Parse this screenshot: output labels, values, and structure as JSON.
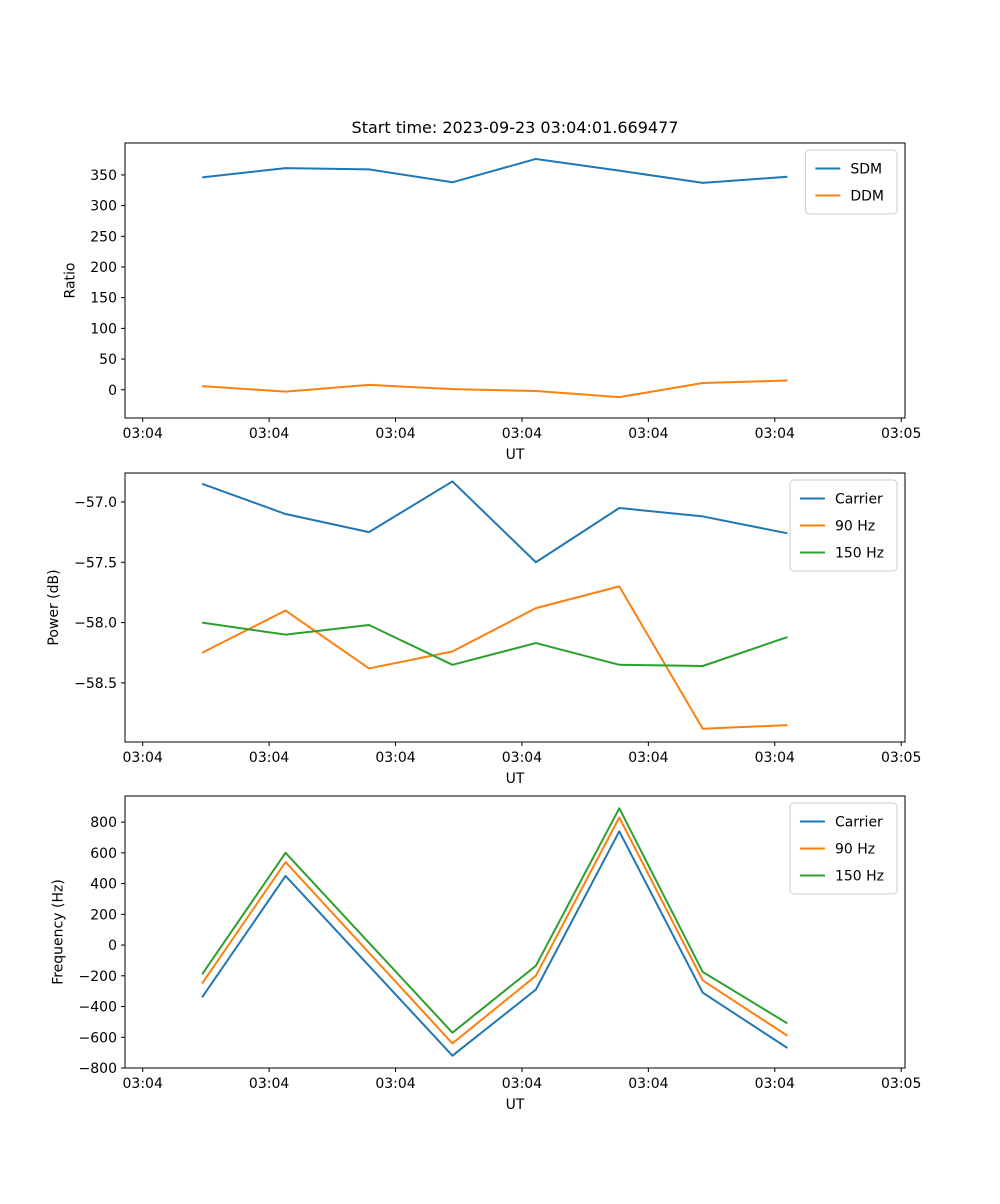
{
  "figure": {
    "title": "Start time: 2023-09-23 03:04:01.669477",
    "background": "#ffffff",
    "spine_color": "#000000",
    "legend_border_color": "#cccccc"
  },
  "chart_data": [
    {
      "type": "line",
      "title": "Start time: 2023-09-23 03:04:01.669477",
      "xlabel": "UT",
      "ylabel": "Ratio",
      "grid": false,
      "legend_position": "upper right",
      "xlim_seconds": [
        -1.4,
        60.3
      ],
      "xtick_seconds": [
        0,
        10,
        20,
        30,
        40,
        50,
        60
      ],
      "xtick_labels": [
        "03:04",
        "03:04",
        "03:04",
        "03:04",
        "03:04",
        "03:04",
        "03:05"
      ],
      "ylim": [
        -46,
        402
      ],
      "yticks": [
        0,
        50,
        100,
        150,
        200,
        250,
        300,
        350
      ],
      "ytick_labels": [
        "0",
        "50",
        "100",
        "150",
        "200",
        "250",
        "300",
        "350"
      ],
      "x_seconds": [
        4.7,
        11.3,
        17.9,
        24.5,
        31.1,
        37.7,
        44.3,
        51.0
      ],
      "series": [
        {
          "name": "SDM",
          "color": "#1f77b4",
          "values": [
            346,
            361,
            359,
            338,
            376,
            357,
            337,
            347
          ]
        },
        {
          "name": "DDM",
          "color": "#ff7f0e",
          "values": [
            6,
            -3,
            8,
            1,
            -2,
            -12,
            11,
            15
          ]
        }
      ]
    },
    {
      "type": "line",
      "title": "",
      "xlabel": "UT",
      "ylabel": "Power (dB)",
      "grid": false,
      "legend_position": "upper right",
      "xlim_seconds": [
        -1.4,
        60.3
      ],
      "xtick_seconds": [
        0,
        10,
        20,
        30,
        40,
        50,
        60
      ],
      "xtick_labels": [
        "03:04",
        "03:04",
        "03:04",
        "03:04",
        "03:04",
        "03:04",
        "03:05"
      ],
      "ylim": [
        -58.99,
        -56.76
      ],
      "yticks": [
        -57.0,
        -57.5,
        -58.0,
        -58.5
      ],
      "ytick_labels": [
        "−57.0",
        "−57.5",
        "−58.0",
        "−58.5"
      ],
      "x_seconds": [
        4.7,
        11.3,
        17.9,
        24.5,
        31.1,
        37.7,
        44.3,
        51.0
      ],
      "series": [
        {
          "name": "Carrier",
          "color": "#1f77b4",
          "values": [
            -56.85,
            -57.1,
            -57.25,
            -56.83,
            -57.5,
            -57.05,
            -57.12,
            -57.26
          ]
        },
        {
          "name": "90 Hz",
          "color": "#ff7f0e",
          "values": [
            -58.25,
            -57.9,
            -58.38,
            -58.24,
            -57.88,
            -57.7,
            -58.88,
            -58.85
          ]
        },
        {
          "name": "150 Hz",
          "color": "#2ca02c",
          "values": [
            -58.0,
            -58.1,
            -58.02,
            -58.35,
            -58.17,
            -58.35,
            -58.36,
            -58.12
          ]
        }
      ]
    },
    {
      "type": "line",
      "title": "",
      "xlabel": "UT",
      "ylabel": "Frequency (Hz)",
      "grid": false,
      "legend_position": "upper right",
      "xlim_seconds": [
        -1.4,
        60.3
      ],
      "xtick_seconds": [
        0,
        10,
        20,
        30,
        40,
        50,
        60
      ],
      "xtick_labels": [
        "03:04",
        "03:04",
        "03:04",
        "03:04",
        "03:04",
        "03:04",
        "03:05"
      ],
      "ylim": [
        -800,
        970
      ],
      "yticks": [
        -800,
        -600,
        -400,
        -200,
        0,
        200,
        400,
        600,
        800
      ],
      "ytick_labels": [
        "−800",
        "−600",
        "−400",
        "−200",
        "0",
        "200",
        "400",
        "600",
        "800"
      ],
      "x_seconds": [
        4.7,
        11.3,
        17.9,
        24.5,
        31.1,
        37.7,
        44.3,
        51.0
      ],
      "series": [
        {
          "name": "Carrier",
          "color": "#1f77b4",
          "values": [
            -340,
            450,
            -135,
            -720,
            -290,
            740,
            -310,
            -670
          ]
        },
        {
          "name": "90 Hz",
          "color": "#ff7f0e",
          "values": [
            -250,
            540,
            -50,
            -640,
            -200,
            830,
            -230,
            -590
          ]
        },
        {
          "name": "150 Hz",
          "color": "#2ca02c",
          "values": [
            -190,
            600,
            15,
            -570,
            -135,
            890,
            -175,
            -510
          ]
        }
      ]
    }
  ]
}
